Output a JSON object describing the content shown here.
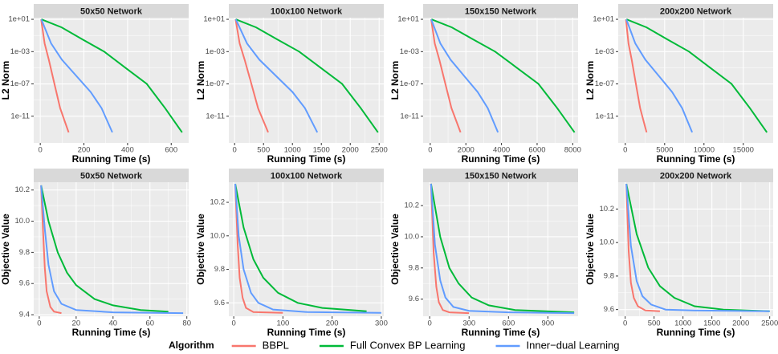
{
  "chart_data": [
    {
      "type": "line",
      "title": "50x50 Network",
      "x_label": "Running Time (s)",
      "y_label": "L2 Norm",
      "log_y": true,
      "grid": true,
      "legend_title": "Algorithm",
      "legend_position": "bottom",
      "xlim": [
        -30,
        680
      ],
      "xticks": [
        0,
        200,
        400,
        600
      ],
      "ylim": [
        5e-15,
        16
      ],
      "yticks": [
        {
          "value": 10,
          "label": "1e+01"
        },
        {
          "value": 0.001,
          "label": "1e-03"
        },
        {
          "value": 1e-07,
          "label": "1e-07"
        },
        {
          "value": 1e-11,
          "label": "1e-11"
        }
      ],
      "series": [
        {
          "name": "BBPL",
          "color": "#F8766D",
          "x": [
            4,
            20,
            39,
            65,
            91,
            130
          ],
          "values": [
            10,
            0.01,
            0.0001,
            1e-07,
            1e-10,
            1e-13
          ]
        },
        {
          "name": "Full Convex BP Learning",
          "color": "#00BA38",
          "x": [
            5,
            98,
            195,
            293,
            390,
            488,
            572,
            650
          ],
          "values": [
            10,
            1,
            0.03,
            0.001,
            1e-05,
            1e-07,
            1e-10,
            1e-13
          ]
        },
        {
          "name": "Inner−dual Learning",
          "color": "#619CFF",
          "x": [
            5,
            50,
            99,
            165,
            231,
            281,
            330
          ],
          "values": [
            10,
            0.01,
            0.0001,
            1e-06,
            1e-08,
            1e-10,
            1e-13
          ]
        }
      ]
    },
    {
      "type": "line",
      "title": "100x100 Network",
      "x_label": "Running Time (s)",
      "y_label": "L2 Norm",
      "log_y": true,
      "grid": true,
      "xlim": [
        -100,
        2580
      ],
      "xticks": [
        0,
        500,
        1000,
        1500,
        2000,
        2500
      ],
      "ylim": [
        5e-15,
        16
      ],
      "yticks": [
        {
          "value": 10,
          "label": "1e+01"
        },
        {
          "value": 0.001,
          "label": "1e-03"
        },
        {
          "value": 1e-07,
          "label": "1e-07"
        },
        {
          "value": 1e-11,
          "label": "1e-11"
        }
      ],
      "series": [
        {
          "name": "BBPL",
          "color": "#F8766D",
          "x": [
            17,
            87,
            174,
            290,
            406,
            580
          ],
          "values": [
            10,
            0.01,
            0.0001,
            1e-07,
            1e-10,
            1e-13
          ]
        },
        {
          "name": "Full Convex BP Learning",
          "color": "#00BA38",
          "x": [
            20,
            372,
            744,
            1116,
            1488,
            1860,
            2182,
            2480
          ],
          "values": [
            10,
            1,
            0.03,
            0.001,
            1e-05,
            1e-07,
            1e-10,
            1e-13
          ]
        },
        {
          "name": "Inner−dual Learning",
          "color": "#619CFF",
          "x": [
            21,
            215,
            429,
            715,
            1001,
            1216,
            1430
          ],
          "values": [
            10,
            0.01,
            0.0001,
            1e-06,
            1e-08,
            1e-10,
            1e-13
          ]
        }
      ]
    },
    {
      "type": "line",
      "title": "150x150 Network",
      "x_label": "Running Time (s)",
      "y_label": "L2 Norm",
      "log_y": true,
      "grid": true,
      "xlim": [
        -400,
        8300
      ],
      "xticks": [
        0,
        2000,
        4000,
        6000,
        8000
      ],
      "ylim": [
        5e-15,
        16
      ],
      "yticks": [
        {
          "value": 10,
          "label": "1e+01"
        },
        {
          "value": 0.001,
          "label": "1e-03"
        },
        {
          "value": 1e-07,
          "label": "1e-07"
        },
        {
          "value": 1e-11,
          "label": "1e-11"
        }
      ],
      "series": [
        {
          "name": "BBPL",
          "color": "#F8766D",
          "x": [
            51,
            255,
            510,
            850,
            1190,
            1700
          ],
          "values": [
            10,
            0.01,
            0.0001,
            1e-07,
            1e-10,
            1e-13
          ]
        },
        {
          "name": "Full Convex BP Learning",
          "color": "#00BA38",
          "x": [
            65,
            1215,
            2430,
            3645,
            4860,
            6075,
            7128,
            8100
          ],
          "values": [
            10,
            1,
            0.03,
            0.001,
            1e-05,
            1e-07,
            1e-10,
            1e-13
          ]
        },
        {
          "name": "Inner−dual Learning",
          "color": "#619CFF",
          "x": [
            57,
            570,
            1140,
            1900,
            2660,
            3230,
            3800
          ],
          "values": [
            10,
            0.01,
            0.0001,
            1e-06,
            1e-08,
            1e-10,
            1e-13
          ]
        }
      ]
    },
    {
      "type": "line",
      "title": "200x200 Network",
      "x_label": "Running Time (s)",
      "y_label": "L2 Norm",
      "log_y": true,
      "grid": true,
      "xlim": [
        -900,
        18800
      ],
      "xticks": [
        0,
        5000,
        10000,
        15000
      ],
      "ylim": [
        5e-15,
        16
      ],
      "yticks": [
        {
          "value": 10,
          "label": "1e+01"
        },
        {
          "value": 0.001,
          "label": "1e-03"
        },
        {
          "value": 1e-07,
          "label": "1e-07"
        },
        {
          "value": 1e-11,
          "label": "1e-11"
        }
      ],
      "series": [
        {
          "name": "BBPL",
          "color": "#F8766D",
          "x": [
            81,
            405,
            810,
            1350,
            1890,
            2700
          ],
          "values": [
            10,
            0.01,
            0.0001,
            1e-07,
            1e-10,
            1e-13
          ]
        },
        {
          "name": "Full Convex BP Learning",
          "color": "#00BA38",
          "x": [
            144,
            2700,
            5400,
            8100,
            10800,
            13500,
            15840,
            18000
          ],
          "values": [
            10,
            1,
            0.03,
            0.001,
            1e-05,
            1e-07,
            1e-10,
            1e-13
          ]
        },
        {
          "name": "Inner−dual Learning",
          "color": "#619CFF",
          "x": [
            128,
            1275,
            2550,
            4250,
            5950,
            7225,
            8500
          ],
          "values": [
            10,
            0.01,
            0.0001,
            1e-06,
            1e-08,
            1e-10,
            1e-13
          ]
        }
      ]
    },
    {
      "type": "line",
      "title": "50x50 Network",
      "x_label": "Running Time (s)",
      "y_label": "Objective Value",
      "grid": true,
      "xlim": [
        -3,
        81
      ],
      "xticks": [
        0,
        20,
        40,
        60,
        80
      ],
      "ylim": [
        9.39,
        10.25
      ],
      "yticks": [
        9.4,
        9.6,
        9.8,
        {
          "value": 10,
          "label": "10.0"
        },
        10.2
      ],
      "series": [
        {
          "name": "BBPL",
          "color": "#F8766D",
          "x": [
            1,
            2,
            3,
            4,
            6,
            8,
            12
          ],
          "values": [
            10.23,
            9.95,
            9.7,
            9.55,
            9.45,
            9.42,
            9.41
          ]
        },
        {
          "name": "Full Convex BP Learning",
          "color": "#00BA38",
          "x": [
            1,
            5,
            10,
            15,
            20,
            30,
            40,
            55,
            70
          ],
          "values": [
            10.23,
            10.0,
            9.8,
            9.67,
            9.59,
            9.5,
            9.46,
            9.43,
            9.42
          ]
        },
        {
          "name": "Inner−dual Learning",
          "color": "#619CFF",
          "x": [
            1,
            3,
            5,
            8,
            12,
            20,
            40,
            78
          ],
          "values": [
            10.23,
            9.95,
            9.72,
            9.55,
            9.47,
            9.43,
            9.415,
            9.41
          ]
        }
      ]
    },
    {
      "type": "line",
      "title": "100x100 Network",
      "x_label": "Running Time (s)",
      "y_label": "Objective Value",
      "grid": true,
      "xlim": [
        -10,
        305
      ],
      "xticks": [
        0,
        100,
        200,
        300
      ],
      "ylim": [
        9.52,
        10.32
      ],
      "yticks": [
        9.6,
        9.8,
        {
          "value": 10,
          "label": "10.0"
        },
        10.2
      ],
      "series": [
        {
          "name": "BBPL",
          "color": "#F8766D",
          "x": [
            3,
            8,
            12,
            18,
            25,
            40,
            100
          ],
          "values": [
            10.31,
            9.95,
            9.75,
            9.63,
            9.57,
            9.545,
            9.54
          ]
        },
        {
          "name": "Full Convex BP Learning",
          "color": "#00BA38",
          "x": [
            3,
            20,
            40,
            60,
            90,
            130,
            180,
            270
          ],
          "values": [
            10.31,
            10.05,
            9.86,
            9.75,
            9.66,
            9.6,
            9.57,
            9.55
          ]
        },
        {
          "name": "Inner−dual Learning",
          "color": "#619CFF",
          "x": [
            3,
            10,
            20,
            35,
            50,
            80,
            150,
            300
          ],
          "values": [
            10.31,
            10.0,
            9.8,
            9.66,
            9.6,
            9.56,
            9.545,
            9.54
          ]
        }
      ]
    },
    {
      "type": "line",
      "title": "150x150 Network",
      "x_label": "Running Time (s)",
      "y_label": "Objective Value",
      "grid": true,
      "xlim": [
        -50,
        1130
      ],
      "xticks": [
        0,
        300,
        600,
        900
      ],
      "ylim": [
        9.49,
        10.35
      ],
      "yticks": [
        9.6,
        9.8,
        {
          "value": 10,
          "label": "10.0"
        },
        10.2
      ],
      "series": [
        {
          "name": "BBPL",
          "color": "#F8766D",
          "x": [
            10,
            30,
            50,
            70,
            100,
            150,
            300
          ],
          "values": [
            10.34,
            9.9,
            9.68,
            9.58,
            9.53,
            9.515,
            9.51
          ]
        },
        {
          "name": "Full Convex BP Learning",
          "color": "#00BA38",
          "x": [
            10,
            80,
            150,
            220,
            320,
            450,
            650,
            1100
          ],
          "values": [
            10.34,
            10.0,
            9.8,
            9.7,
            9.61,
            9.56,
            9.53,
            9.515
          ]
        },
        {
          "name": "Inner−dual Learning",
          "color": "#619CFF",
          "x": [
            10,
            40,
            80,
            120,
            180,
            300,
            600,
            1100
          ],
          "values": [
            10.34,
            9.95,
            9.72,
            9.61,
            9.55,
            9.525,
            9.515,
            9.51
          ]
        }
      ]
    },
    {
      "type": "line",
      "title": "200x200 Network",
      "x_label": "Running Time (s)",
      "y_label": "Objective Value",
      "grid": true,
      "xlim": [
        -120,
        2560
      ],
      "xticks": [
        0,
        500,
        1000,
        1500,
        2000,
        2500
      ],
      "ylim": [
        9.56,
        10.36
      ],
      "yticks": [
        9.6,
        9.8,
        {
          "value": 10,
          "label": "10.0"
        },
        10.2
      ],
      "series": [
        {
          "name": "BBPL",
          "color": "#F8766D",
          "x": [
            20,
            60,
            100,
            150,
            220,
            350,
            600
          ],
          "values": [
            10.35,
            9.95,
            9.76,
            9.67,
            9.62,
            9.595,
            9.59
          ]
        },
        {
          "name": "Full Convex BP Learning",
          "color": "#00BA38",
          "x": [
            20,
            200,
            400,
            600,
            850,
            1200,
            1700,
            2500
          ],
          "values": [
            10.35,
            10.05,
            9.85,
            9.74,
            9.67,
            9.62,
            9.6,
            9.59
          ]
        },
        {
          "name": "Inner−dual Learning",
          "color": "#619CFF",
          "x": [
            20,
            100,
            200,
            300,
            450,
            700,
            1200,
            2500
          ],
          "values": [
            10.35,
            9.98,
            9.77,
            9.68,
            9.63,
            9.6,
            9.595,
            9.59
          ]
        }
      ]
    }
  ]
}
